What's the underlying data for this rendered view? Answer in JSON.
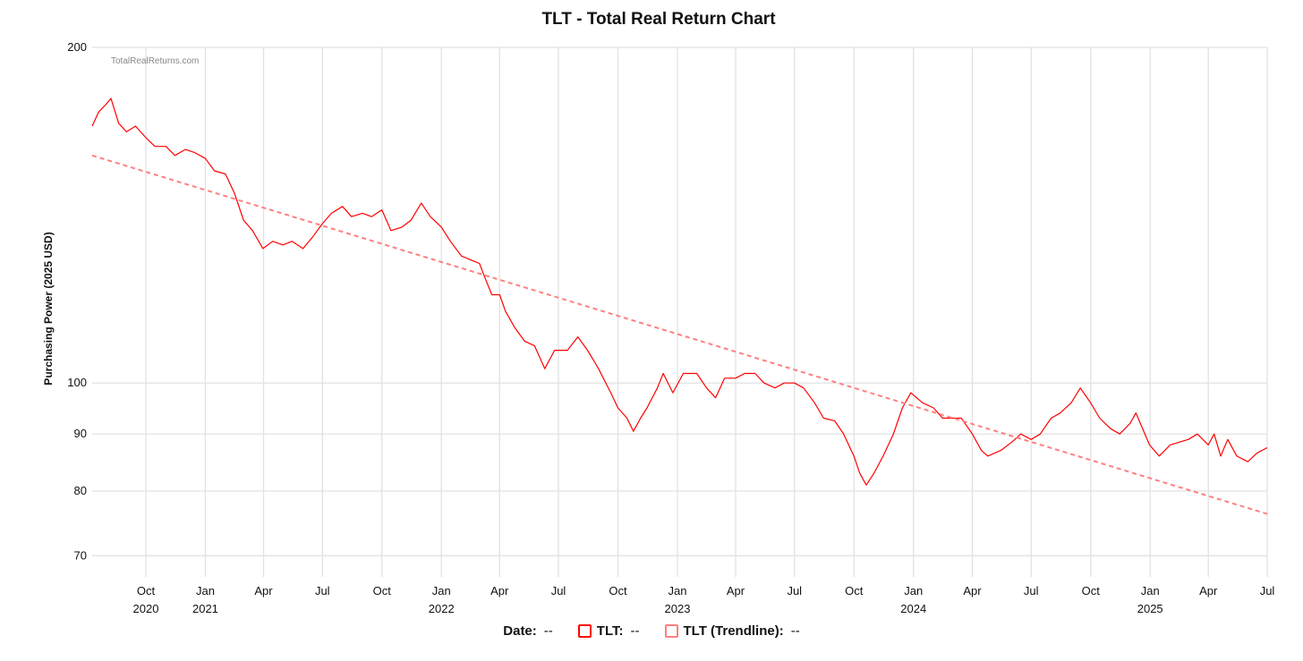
{
  "chart_data": {
    "type": "line",
    "title": "TLT - Total Real Return Chart",
    "watermark": "TotalRealReturns.com",
    "ylabel": "Purchasing Power (2025 USD)",
    "xlabel": "",
    "y_scale": "log",
    "ylim": [
      67,
      200
    ],
    "y_ticks": [
      70,
      80,
      90,
      100,
      200
    ],
    "xlim": [
      "2020-07-10",
      "2025-07-01"
    ],
    "grid": true,
    "x_ticks": [
      {
        "date": "2020-10-01",
        "month": "Oct",
        "year": "2020"
      },
      {
        "date": "2021-01-01",
        "month": "Jan",
        "year": "2021"
      },
      {
        "date": "2021-04-01",
        "month": "Apr",
        "year": ""
      },
      {
        "date": "2021-07-01",
        "month": "Jul",
        "year": ""
      },
      {
        "date": "2021-10-01",
        "month": "Oct",
        "year": ""
      },
      {
        "date": "2022-01-01",
        "month": "Jan",
        "year": "2022"
      },
      {
        "date": "2022-04-01",
        "month": "Apr",
        "year": ""
      },
      {
        "date": "2022-07-01",
        "month": "Jul",
        "year": ""
      },
      {
        "date": "2022-10-01",
        "month": "Oct",
        "year": ""
      },
      {
        "date": "2023-01-01",
        "month": "Jan",
        "year": "2023"
      },
      {
        "date": "2023-04-01",
        "month": "Apr",
        "year": ""
      },
      {
        "date": "2023-07-01",
        "month": "Jul",
        "year": ""
      },
      {
        "date": "2023-10-01",
        "month": "Oct",
        "year": ""
      },
      {
        "date": "2024-01-01",
        "month": "Jan",
        "year": "2024"
      },
      {
        "date": "2024-04-01",
        "month": "Apr",
        "year": ""
      },
      {
        "date": "2024-07-01",
        "month": "Jul",
        "year": ""
      },
      {
        "date": "2024-10-01",
        "month": "Oct",
        "year": ""
      },
      {
        "date": "2025-01-01",
        "month": "Jan",
        "year": "2025"
      },
      {
        "date": "2025-04-01",
        "month": "Apr",
        "year": ""
      },
      {
        "date": "2025-07-01",
        "month": "Jul",
        "year": ""
      }
    ],
    "series": [
      {
        "name": "TLT",
        "color": "#ff0000",
        "style": "solid",
        "points": [
          [
            "2020-07-10",
            170
          ],
          [
            "2020-07-20",
            175
          ],
          [
            "2020-08-01",
            178
          ],
          [
            "2020-08-08",
            180
          ],
          [
            "2020-08-20",
            171
          ],
          [
            "2020-09-01",
            168
          ],
          [
            "2020-09-15",
            170
          ],
          [
            "2020-10-01",
            166
          ],
          [
            "2020-10-15",
            163
          ],
          [
            "2020-11-01",
            163
          ],
          [
            "2020-11-15",
            160
          ],
          [
            "2020-12-01",
            162
          ],
          [
            "2020-12-15",
            161
          ],
          [
            "2021-01-01",
            159
          ],
          [
            "2021-01-15",
            155
          ],
          [
            "2021-02-01",
            154
          ],
          [
            "2021-02-15",
            148
          ],
          [
            "2021-03-01",
            140
          ],
          [
            "2021-03-15",
            137
          ],
          [
            "2021-03-31",
            132
          ],
          [
            "2021-04-15",
            134
          ],
          [
            "2021-05-01",
            133
          ],
          [
            "2021-05-15",
            134
          ],
          [
            "2021-06-01",
            132
          ],
          [
            "2021-06-15",
            135
          ],
          [
            "2021-07-01",
            139
          ],
          [
            "2021-07-15",
            142
          ],
          [
            "2021-08-01",
            144
          ],
          [
            "2021-08-15",
            141
          ],
          [
            "2021-09-01",
            142
          ],
          [
            "2021-09-15",
            141
          ],
          [
            "2021-10-01",
            143
          ],
          [
            "2021-10-15",
            137
          ],
          [
            "2021-11-01",
            138
          ],
          [
            "2021-11-15",
            140
          ],
          [
            "2021-12-01",
            145
          ],
          [
            "2021-12-15",
            141
          ],
          [
            "2022-01-01",
            138
          ],
          [
            "2022-01-15",
            134
          ],
          [
            "2022-02-01",
            130
          ],
          [
            "2022-02-15",
            129
          ],
          [
            "2022-03-01",
            128
          ],
          [
            "2022-03-10",
            124
          ],
          [
            "2022-03-20",
            120
          ],
          [
            "2022-04-01",
            120
          ],
          [
            "2022-04-10",
            116
          ],
          [
            "2022-04-25",
            112
          ],
          [
            "2022-05-10",
            109
          ],
          [
            "2022-05-25",
            108
          ],
          [
            "2022-06-10",
            103
          ],
          [
            "2022-06-25",
            107
          ],
          [
            "2022-07-15",
            107
          ],
          [
            "2022-07-31",
            110
          ],
          [
            "2022-08-15",
            107
          ],
          [
            "2022-09-01",
            103
          ],
          [
            "2022-09-20",
            98
          ],
          [
            "2022-10-01",
            95
          ],
          [
            "2022-10-15",
            93
          ],
          [
            "2022-10-25",
            90.5
          ],
          [
            "2022-11-05",
            93
          ],
          [
            "2022-11-15",
            95
          ],
          [
            "2022-12-01",
            99
          ],
          [
            "2022-12-10",
            102
          ],
          [
            "2022-12-25",
            98
          ],
          [
            "2023-01-10",
            102
          ],
          [
            "2023-01-31",
            102
          ],
          [
            "2023-02-15",
            99
          ],
          [
            "2023-03-01",
            97
          ],
          [
            "2023-03-15",
            101
          ],
          [
            "2023-04-01",
            101
          ],
          [
            "2023-04-15",
            102
          ],
          [
            "2023-05-01",
            102
          ],
          [
            "2023-05-15",
            100
          ],
          [
            "2023-06-01",
            99
          ],
          [
            "2023-06-15",
            100
          ],
          [
            "2023-07-01",
            100
          ],
          [
            "2023-07-15",
            99
          ],
          [
            "2023-08-01",
            96
          ],
          [
            "2023-08-15",
            93
          ],
          [
            "2023-09-01",
            92.5
          ],
          [
            "2023-09-15",
            90
          ],
          [
            "2023-10-01",
            86
          ],
          [
            "2023-10-10",
            83
          ],
          [
            "2023-10-20",
            81
          ],
          [
            "2023-11-01",
            83
          ],
          [
            "2023-11-15",
            86
          ],
          [
            "2023-12-01",
            90
          ],
          [
            "2023-12-15",
            95
          ],
          [
            "2023-12-28",
            98
          ],
          [
            "2024-01-15",
            96
          ],
          [
            "2024-02-01",
            95
          ],
          [
            "2024-02-15",
            93
          ],
          [
            "2024-03-01",
            93
          ],
          [
            "2024-03-15",
            93
          ],
          [
            "2024-04-01",
            90
          ],
          [
            "2024-04-15",
            87
          ],
          [
            "2024-04-25",
            86
          ],
          [
            "2024-05-15",
            87
          ],
          [
            "2024-06-01",
            88.5
          ],
          [
            "2024-06-15",
            90
          ],
          [
            "2024-07-01",
            89
          ],
          [
            "2024-07-15",
            90
          ],
          [
            "2024-08-01",
            93
          ],
          [
            "2024-08-15",
            94
          ],
          [
            "2024-09-01",
            96
          ],
          [
            "2024-09-15",
            99
          ],
          [
            "2024-09-20",
            98
          ],
          [
            "2024-10-01",
            96
          ],
          [
            "2024-10-15",
            93
          ],
          [
            "2024-11-01",
            91
          ],
          [
            "2024-11-15",
            90
          ],
          [
            "2024-12-01",
            92
          ],
          [
            "2024-12-10",
            94
          ],
          [
            "2024-12-31",
            88
          ],
          [
            "2025-01-15",
            86
          ],
          [
            "2025-02-01",
            88
          ],
          [
            "2025-02-15",
            88.5
          ],
          [
            "2025-03-01",
            89
          ],
          [
            "2025-03-15",
            90
          ],
          [
            "2025-04-01",
            88
          ],
          [
            "2025-04-10",
            90
          ],
          [
            "2025-04-20",
            86
          ],
          [
            "2025-05-01",
            89
          ],
          [
            "2025-05-15",
            86
          ],
          [
            "2025-06-01",
            85
          ],
          [
            "2025-06-15",
            86.5
          ],
          [
            "2025-07-01",
            87.5
          ]
        ]
      },
      {
        "name": "TLT (Trendline)",
        "color": "#ff7f7f",
        "style": "dashed",
        "points": [
          [
            "2020-07-10",
            160
          ],
          [
            "2025-07-01",
            76.3
          ]
        ]
      }
    ]
  },
  "legend": {
    "date_label": "Date:",
    "date_value": "--",
    "tlt_label": "TLT:",
    "tlt_value": "--",
    "trend_label": "TLT (Trendline):",
    "trend_value": "--"
  }
}
